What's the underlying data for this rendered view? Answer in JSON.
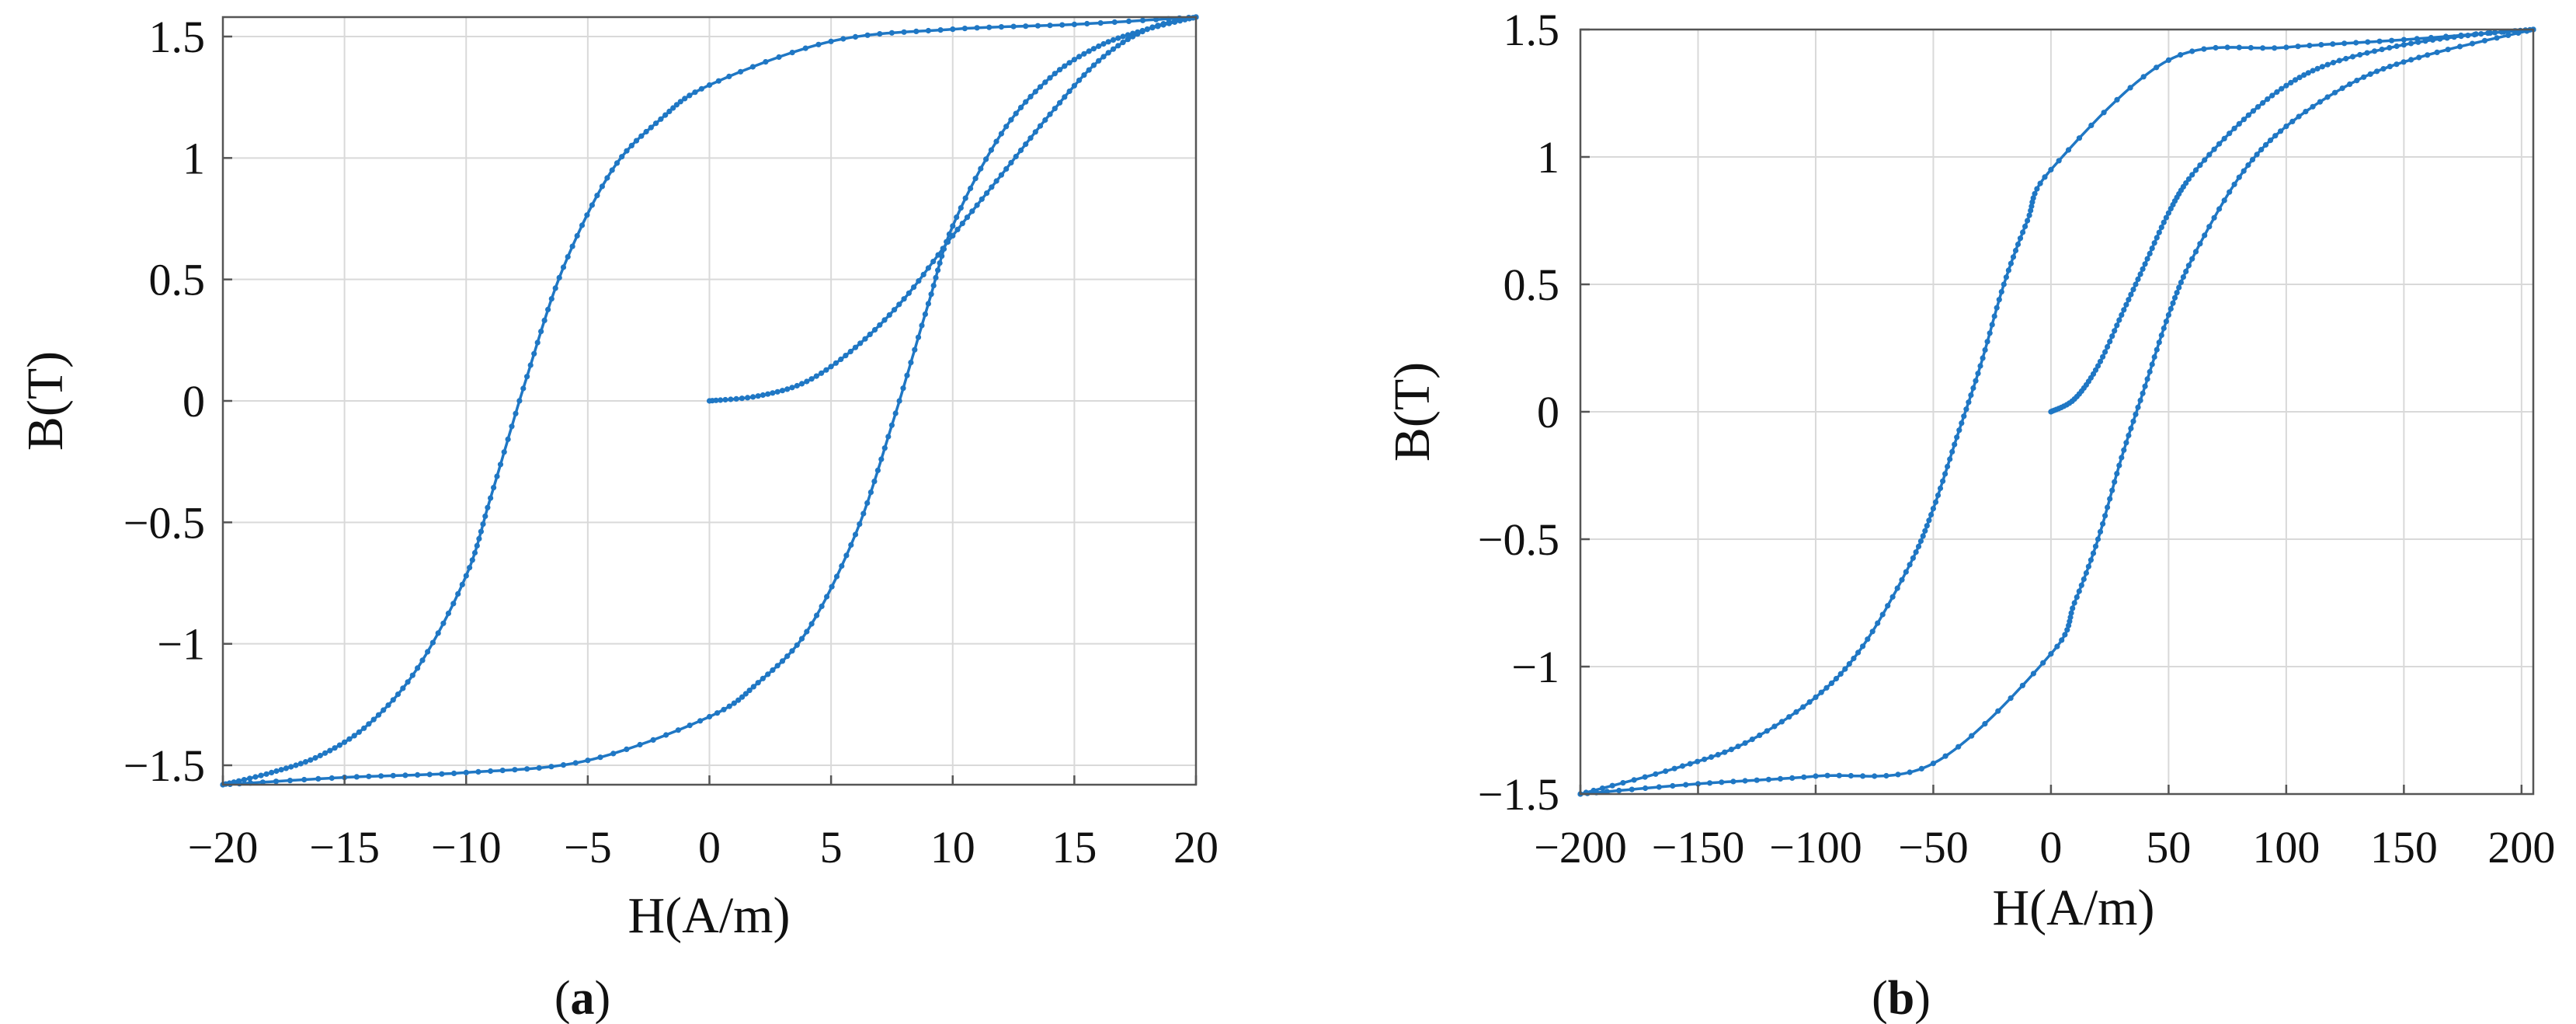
{
  "chart_data": [
    {
      "type": "line",
      "panel": "a",
      "caption_open": "(",
      "caption_letter": "a",
      "caption_close": ")",
      "xlabel": "H(A/m)",
      "ylabel": "B(T)",
      "xlim": [
        -20,
        20
      ],
      "ylim": [
        -1.58,
        1.58
      ],
      "xticks": [
        -20,
        -15,
        -10,
        -5,
        0,
        5,
        10,
        15,
        20
      ],
      "xtick_labels": [
        "−20",
        "−15",
        "−10",
        "−5",
        "0",
        "5",
        "10",
        "15",
        "20"
      ],
      "yticks": [
        -1.5,
        -1,
        -0.5,
        0,
        0.5,
        1,
        1.5
      ],
      "ytick_labels": [
        "−1.5",
        "−1",
        "−0.5",
        "0",
        "0.5",
        "1",
        "1.5"
      ],
      "grid": true,
      "color": "#1f77c4",
      "series": [
        {
          "x": [
            0,
            2,
            4,
            6,
            8,
            10,
            12,
            14,
            16,
            18,
            20
          ],
          "y": [
            0,
            0.02,
            0.08,
            0.22,
            0.42,
            0.68,
            0.93,
            1.18,
            1.4,
            1.53,
            1.58
          ]
        },
        {
          "x": [
            20,
            15,
            10,
            5,
            0,
            -2,
            -4,
            -6,
            -7.5,
            -9,
            -10,
            -12,
            -14,
            -16,
            -18,
            -20
          ],
          "y": [
            1.58,
            1.55,
            1.53,
            1.48,
            1.3,
            1.16,
            0.95,
            0.55,
            0.1,
            -0.4,
            -0.72,
            -1.1,
            -1.33,
            -1.46,
            -1.53,
            -1.58
          ]
        },
        {
          "x": [
            -20,
            -15,
            -10,
            -5,
            0,
            2,
            4,
            6,
            7.5,
            9,
            10,
            12,
            14,
            16,
            18,
            20
          ],
          "y": [
            -1.58,
            -1.55,
            -1.53,
            -1.48,
            -1.3,
            -1.16,
            -0.95,
            -0.55,
            -0.1,
            0.4,
            0.72,
            1.1,
            1.33,
            1.46,
            1.53,
            1.58
          ]
        }
      ]
    },
    {
      "type": "line",
      "panel": "b",
      "caption_open": "(",
      "caption_letter": "b",
      "caption_close": ")",
      "xlabel": "H(A/m)",
      "ylabel": "B(T)",
      "xlim": [
        -200,
        205
      ],
      "ylim": [
        -1.5,
        1.5
      ],
      "xticks": [
        -200,
        -150,
        -100,
        -50,
        0,
        50,
        100,
        150,
        200
      ],
      "xtick_labels": [
        "−200",
        "−150",
        "−100",
        "−50",
        "0",
        "50",
        "100",
        "150",
        "200"
      ],
      "yticks": [
        -1.5,
        -1,
        -0.5,
        0,
        0.5,
        1,
        1.5
      ],
      "ytick_labels": [
        "−1.5",
        "−1",
        "−0.5",
        "0",
        "0.5",
        "1",
        "1.5"
      ],
      "grid": true,
      "color": "#1f77c4",
      "series": [
        {
          "x": [
            0,
            10,
            20,
            30,
            40,
            50,
            60,
            80,
            100,
            120,
            150,
            180,
            205
          ],
          "y": [
            0,
            0.05,
            0.18,
            0.38,
            0.58,
            0.78,
            0.93,
            1.13,
            1.28,
            1.37,
            1.44,
            1.48,
            1.5
          ]
        },
        {
          "x": [
            205,
            150,
            100,
            50,
            0,
            -10,
            -20,
            -30,
            -40,
            -50,
            -60,
            -80,
            -100,
            -130,
            -160,
            -200
          ],
          "y": [
            1.5,
            1.46,
            1.43,
            1.38,
            0.95,
            0.75,
            0.5,
            0.18,
            -0.1,
            -0.38,
            -0.6,
            -0.92,
            -1.12,
            -1.3,
            -1.4,
            -1.5
          ]
        },
        {
          "x": [
            -200,
            -150,
            -100,
            -50,
            0,
            10,
            20,
            30,
            40,
            50,
            60,
            80,
            100,
            130,
            160,
            205
          ],
          "y": [
            -1.5,
            -1.46,
            -1.43,
            -1.38,
            -0.95,
            -0.75,
            -0.5,
            -0.18,
            0.1,
            0.38,
            0.6,
            0.92,
            1.12,
            1.3,
            1.4,
            1.5
          ]
        }
      ]
    }
  ]
}
